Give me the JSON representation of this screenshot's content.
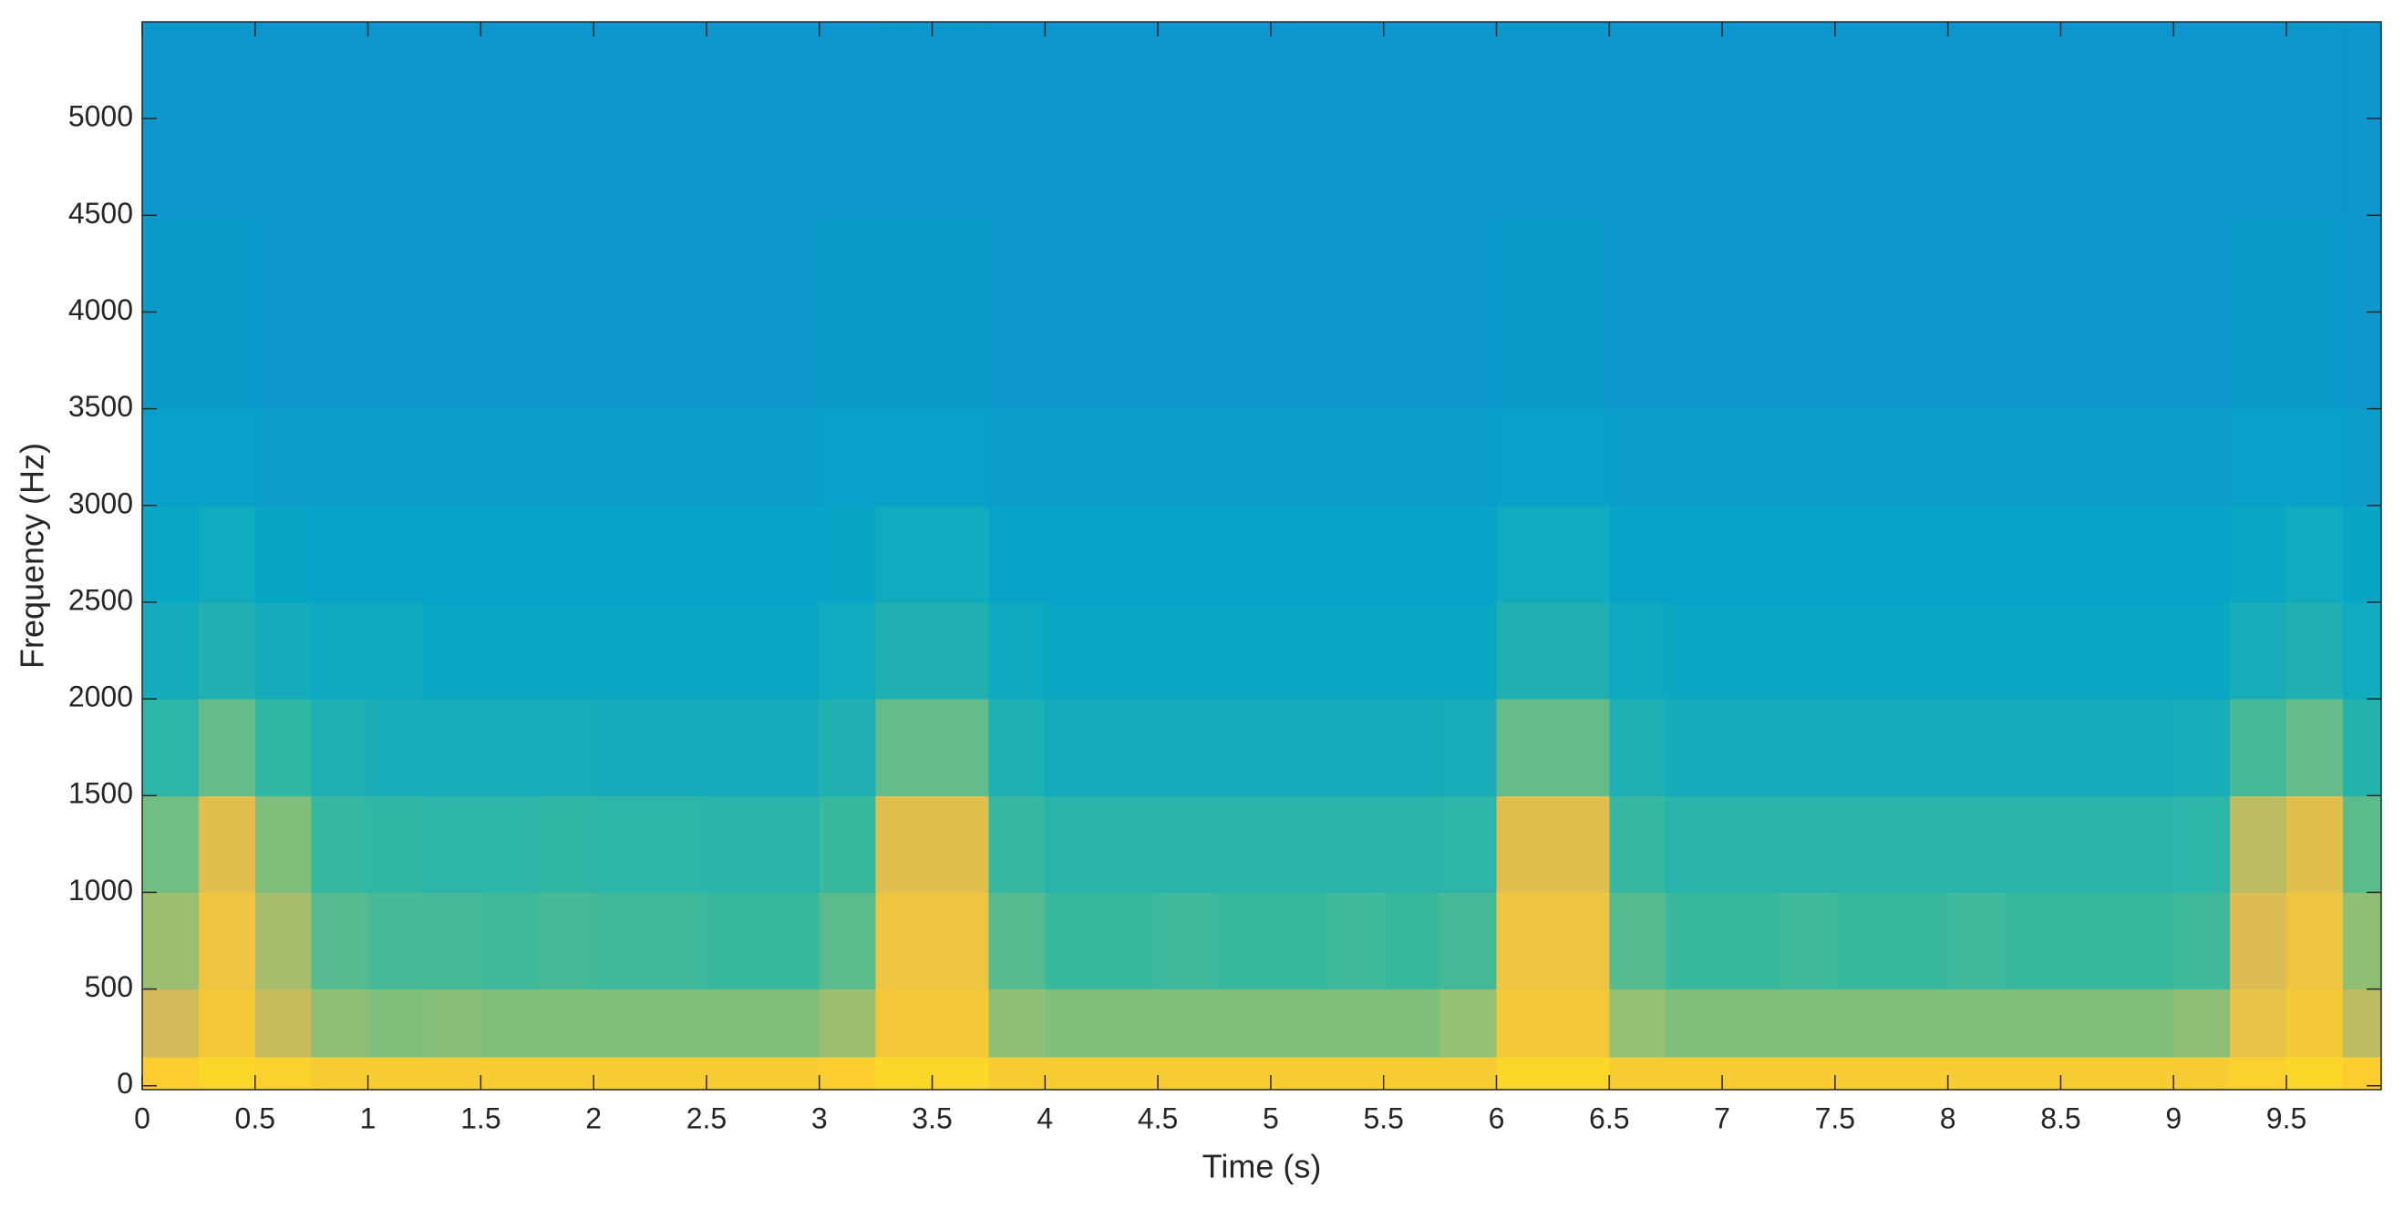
{
  "chart_data": {
    "type": "spectrogram",
    "xlabel": "Time (s)",
    "ylabel": "Frequency (Hz)",
    "xlim": [
      0,
      9.92
    ],
    "ylim": [
      -20,
      5500
    ],
    "xticks": [
      0,
      0.5,
      1,
      1.5,
      2,
      2.5,
      3,
      3.5,
      4,
      4.5,
      5,
      5.5,
      6,
      6.5,
      7,
      7.5,
      8,
      8.5,
      9,
      9.5
    ],
    "yticks": [
      0,
      500,
      1000,
      1500,
      2000,
      2500,
      3000,
      3500,
      4000,
      4500,
      5000
    ],
    "colormap": [
      "#352a87",
      "#0363e1",
      "#1485d4",
      "#06a7c6",
      "#38b99e",
      "#92bf73",
      "#d9ba56",
      "#fcce2e",
      "#f9fb0e"
    ],
    "x_bins": [
      0,
      0.25,
      0.5,
      0.75,
      1,
      1.25,
      1.5,
      1.75,
      2,
      2.25,
      2.5,
      2.75,
      3,
      3.25,
      3.5,
      3.75,
      4,
      4.25,
      4.5,
      4.75,
      5,
      5.25,
      5.5,
      5.75,
      6,
      6.25,
      6.5,
      6.75,
      7,
      7.25,
      7.5,
      7.75,
      8,
      8.25,
      8.5,
      8.75,
      9,
      9.25,
      9.5,
      9.75,
      9.92
    ],
    "y_bins": [
      -20,
      150,
      500,
      1000,
      1500,
      2000,
      2500,
      3000,
      3500,
      4500,
      5500
    ],
    "values": [
      [
        0.87,
        0.74,
        0.64,
        0.58,
        0.47,
        0.41,
        0.38,
        0.35,
        0.33,
        0.32
      ],
      [
        0.9,
        0.84,
        0.82,
        0.78,
        0.56,
        0.44,
        0.4,
        0.35,
        0.33,
        0.32
      ],
      [
        0.88,
        0.72,
        0.66,
        0.6,
        0.48,
        0.41,
        0.37,
        0.34,
        0.32,
        0.31
      ],
      [
        0.86,
        0.62,
        0.54,
        0.49,
        0.43,
        0.39,
        0.36,
        0.34,
        0.32,
        0.31
      ],
      [
        0.86,
        0.6,
        0.52,
        0.48,
        0.42,
        0.39,
        0.36,
        0.34,
        0.32,
        0.31
      ],
      [
        0.86,
        0.61,
        0.52,
        0.47,
        0.42,
        0.38,
        0.36,
        0.34,
        0.32,
        0.31
      ],
      [
        0.86,
        0.6,
        0.51,
        0.47,
        0.42,
        0.38,
        0.36,
        0.34,
        0.32,
        0.31
      ],
      [
        0.86,
        0.6,
        0.52,
        0.48,
        0.42,
        0.38,
        0.36,
        0.34,
        0.32,
        0.31
      ],
      [
        0.86,
        0.6,
        0.51,
        0.47,
        0.41,
        0.38,
        0.36,
        0.34,
        0.32,
        0.31
      ],
      [
        0.86,
        0.6,
        0.51,
        0.47,
        0.41,
        0.38,
        0.36,
        0.34,
        0.32,
        0.31
      ],
      [
        0.86,
        0.6,
        0.5,
        0.46,
        0.41,
        0.38,
        0.36,
        0.34,
        0.32,
        0.31
      ],
      [
        0.86,
        0.6,
        0.5,
        0.46,
        0.41,
        0.38,
        0.36,
        0.34,
        0.32,
        0.31
      ],
      [
        0.87,
        0.64,
        0.55,
        0.5,
        0.44,
        0.4,
        0.37,
        0.35,
        0.33,
        0.31
      ],
      [
        0.9,
        0.84,
        0.82,
        0.78,
        0.56,
        0.44,
        0.4,
        0.35,
        0.33,
        0.32
      ],
      [
        0.9,
        0.84,
        0.82,
        0.78,
        0.56,
        0.44,
        0.4,
        0.35,
        0.33,
        0.32
      ],
      [
        0.86,
        0.62,
        0.54,
        0.49,
        0.43,
        0.39,
        0.36,
        0.34,
        0.32,
        0.31
      ],
      [
        0.86,
        0.6,
        0.5,
        0.46,
        0.41,
        0.38,
        0.36,
        0.34,
        0.32,
        0.31
      ],
      [
        0.86,
        0.6,
        0.5,
        0.46,
        0.41,
        0.38,
        0.36,
        0.34,
        0.32,
        0.31
      ],
      [
        0.86,
        0.6,
        0.51,
        0.46,
        0.41,
        0.38,
        0.36,
        0.34,
        0.32,
        0.31
      ],
      [
        0.86,
        0.6,
        0.5,
        0.46,
        0.41,
        0.38,
        0.36,
        0.34,
        0.32,
        0.31
      ],
      [
        0.86,
        0.6,
        0.5,
        0.46,
        0.41,
        0.38,
        0.36,
        0.34,
        0.32,
        0.31
      ],
      [
        0.86,
        0.6,
        0.51,
        0.46,
        0.41,
        0.38,
        0.36,
        0.34,
        0.32,
        0.31
      ],
      [
        0.86,
        0.6,
        0.5,
        0.46,
        0.41,
        0.38,
        0.36,
        0.34,
        0.32,
        0.31
      ],
      [
        0.86,
        0.63,
        0.52,
        0.47,
        0.42,
        0.38,
        0.36,
        0.34,
        0.32,
        0.31
      ],
      [
        0.9,
        0.84,
        0.82,
        0.78,
        0.56,
        0.44,
        0.4,
        0.35,
        0.33,
        0.32
      ],
      [
        0.9,
        0.84,
        0.82,
        0.78,
        0.56,
        0.44,
        0.4,
        0.35,
        0.33,
        0.32
      ],
      [
        0.86,
        0.63,
        0.54,
        0.49,
        0.43,
        0.39,
        0.36,
        0.34,
        0.32,
        0.31
      ],
      [
        0.86,
        0.6,
        0.5,
        0.46,
        0.41,
        0.38,
        0.36,
        0.34,
        0.32,
        0.31
      ],
      [
        0.86,
        0.6,
        0.5,
        0.46,
        0.41,
        0.38,
        0.36,
        0.34,
        0.32,
        0.31
      ],
      [
        0.86,
        0.6,
        0.51,
        0.46,
        0.41,
        0.38,
        0.36,
        0.34,
        0.32,
        0.31
      ],
      [
        0.86,
        0.6,
        0.5,
        0.46,
        0.41,
        0.38,
        0.36,
        0.34,
        0.32,
        0.31
      ],
      [
        0.86,
        0.6,
        0.5,
        0.46,
        0.41,
        0.38,
        0.36,
        0.34,
        0.32,
        0.31
      ],
      [
        0.86,
        0.6,
        0.51,
        0.46,
        0.41,
        0.38,
        0.36,
        0.34,
        0.32,
        0.31
      ],
      [
        0.86,
        0.6,
        0.5,
        0.46,
        0.41,
        0.38,
        0.36,
        0.34,
        0.32,
        0.31
      ],
      [
        0.86,
        0.6,
        0.5,
        0.46,
        0.41,
        0.38,
        0.36,
        0.34,
        0.32,
        0.31
      ],
      [
        0.86,
        0.6,
        0.5,
        0.46,
        0.41,
        0.38,
        0.36,
        0.34,
        0.32,
        0.31
      ],
      [
        0.86,
        0.62,
        0.51,
        0.47,
        0.42,
        0.38,
        0.36,
        0.34,
        0.32,
        0.31
      ],
      [
        0.88,
        0.8,
        0.76,
        0.7,
        0.52,
        0.42,
        0.38,
        0.35,
        0.33,
        0.31
      ],
      [
        0.9,
        0.84,
        0.82,
        0.78,
        0.56,
        0.44,
        0.4,
        0.35,
        0.33,
        0.32
      ],
      [
        0.87,
        0.7,
        0.62,
        0.55,
        0.45,
        0.4,
        0.37,
        0.34,
        0.32,
        0.31
      ]
    ]
  }
}
